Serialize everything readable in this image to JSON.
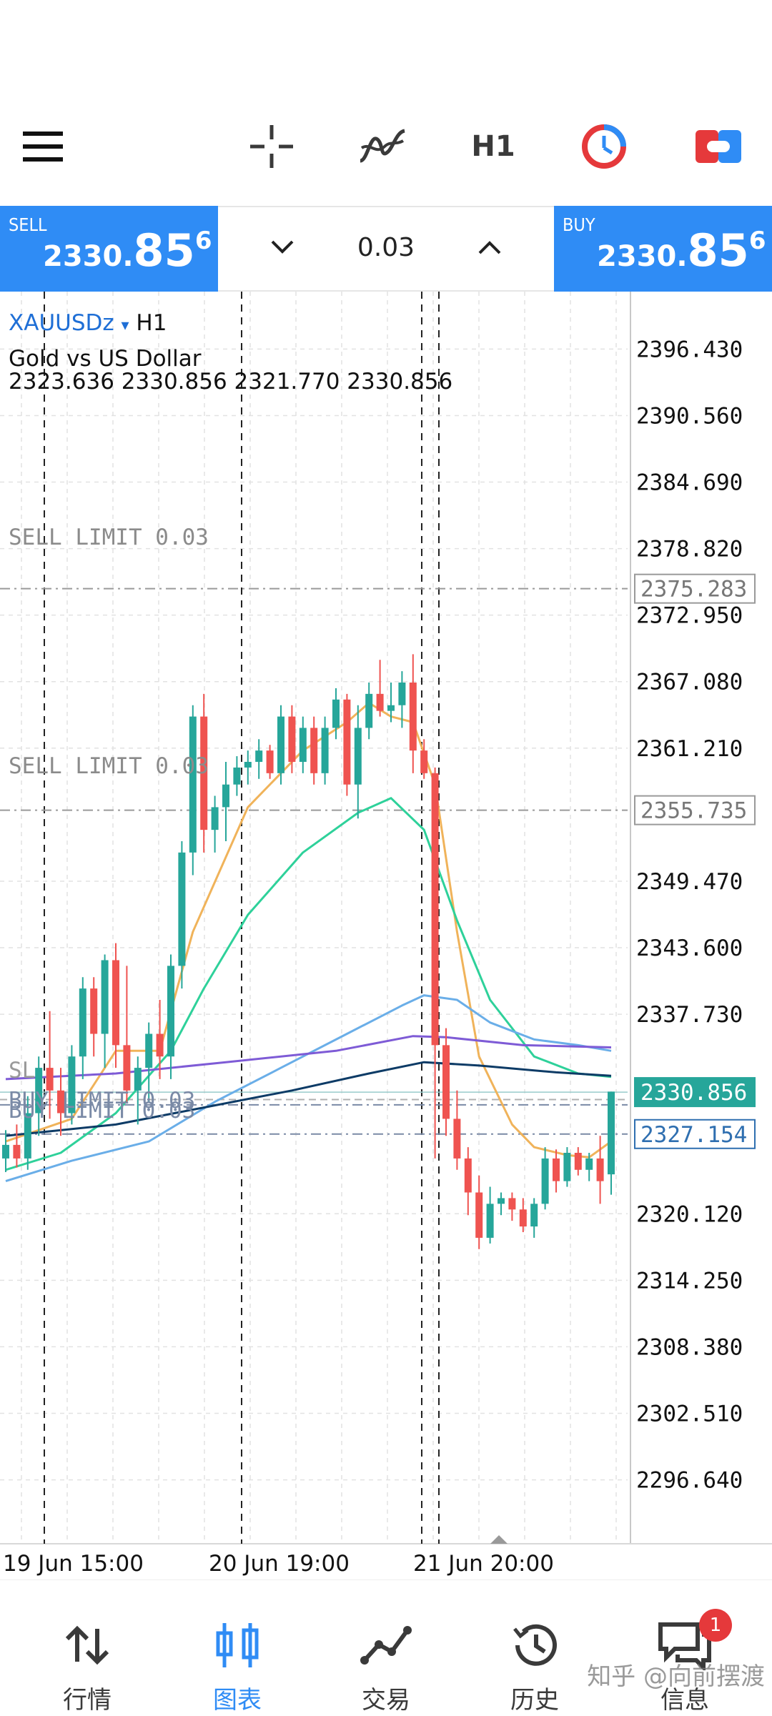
{
  "toolbar": {
    "menu_icon": "hamburger-menu-icon",
    "crosshair_icon": "crosshair-icon",
    "indicators_icon": "indicators-icon",
    "timeframe": "H1",
    "trade_icon": "clock-trade-icon",
    "toggle_icon": "toggle-icon"
  },
  "trade": {
    "sell": {
      "label": "SELL",
      "price_small": "2330.",
      "price_big": "85",
      "price_sup": "6"
    },
    "buy": {
      "label": "BUY",
      "price_small": "2330.",
      "price_big": "85",
      "price_sup": "6"
    },
    "volume": "0.03"
  },
  "chart_info": {
    "symbol": "XAUUSDz",
    "dropdown_glyph": "▾",
    "timeframe": "H1",
    "description": "Gold vs US Dollar",
    "ohlc": "2323.636 2330.856 2321.770 2330.856"
  },
  "orders": {
    "sell_limit_1": {
      "label": "SELL LIMIT 0.03",
      "price": "2375.283"
    },
    "sell_limit_2": {
      "label": "SELL LIMIT 0.03",
      "price": "2355.735"
    },
    "buy_limit_1": {
      "label": "BUY LIMIT 0.03"
    },
    "buy_limit_2": {
      "label": "BUY LIMIT 0.03",
      "price": "2327.154"
    },
    "sl": {
      "label": "SL"
    }
  },
  "colors": {
    "bull": "#26a69a",
    "bear": "#ef5350",
    "accent": "#2f8cf5",
    "ma_orange": "#f0b35a",
    "ma_green": "#2ed19a",
    "ma_lightblue": "#6aaee8",
    "ma_purple": "#7e5bd6",
    "ma_navy": "#0d3b66"
  },
  "chart_data": {
    "type": "candlestick",
    "symbol": "XAUUSDz",
    "timeframe": "H1",
    "ylim": [
      2291.0,
      2401.5
    ],
    "y_ticks": [
      "2396.430",
      "2390.560",
      "2384.690",
      "2378.820",
      "2372.950",
      "2367.080",
      "2361.210",
      "2349.470",
      "2343.600",
      "2337.730",
      "2320.120",
      "2314.250",
      "2308.380",
      "2302.510",
      "2296.640"
    ],
    "x_ticks": [
      "19 Jun 15:00",
      "20 Jun 19:00",
      "21 Jun 20:00"
    ],
    "current_price": "2330.856",
    "candles": [
      {
        "o": 2325.0,
        "h": 2327.5,
        "l": 2323.8,
        "c": 2326.2
      },
      {
        "o": 2326.2,
        "h": 2328.0,
        "l": 2324.2,
        "c": 2325.0
      },
      {
        "o": 2325.0,
        "h": 2330.5,
        "l": 2324.0,
        "c": 2329.0
      },
      {
        "o": 2329.0,
        "h": 2334.0,
        "l": 2327.0,
        "c": 2333.0
      },
      {
        "o": 2333.0,
        "h": 2338.0,
        "l": 2328.5,
        "c": 2331.0
      },
      {
        "o": 2331.0,
        "h": 2333.0,
        "l": 2327.0,
        "c": 2329.0
      },
      {
        "o": 2329.0,
        "h": 2335.0,
        "l": 2328.0,
        "c": 2334.0
      },
      {
        "o": 2334.0,
        "h": 2341.0,
        "l": 2332.0,
        "c": 2340.0
      },
      {
        "o": 2340.0,
        "h": 2341.0,
        "l": 2334.0,
        "c": 2336.0
      },
      {
        "o": 2336.0,
        "h": 2343.0,
        "l": 2333.0,
        "c": 2342.5
      },
      {
        "o": 2342.5,
        "h": 2344.0,
        "l": 2333.0,
        "c": 2335.0
      },
      {
        "o": 2335.0,
        "h": 2342.0,
        "l": 2330.0,
        "c": 2331.0
      },
      {
        "o": 2331.0,
        "h": 2334.0,
        "l": 2328.0,
        "c": 2333.0
      },
      {
        "o": 2333.0,
        "h": 2337.0,
        "l": 2330.0,
        "c": 2336.0
      },
      {
        "o": 2336.0,
        "h": 2339.0,
        "l": 2332.0,
        "c": 2334.0
      },
      {
        "o": 2334.0,
        "h": 2343.0,
        "l": 2332.0,
        "c": 2342.0
      },
      {
        "o": 2342.0,
        "h": 2353.0,
        "l": 2340.0,
        "c": 2352.0
      },
      {
        "o": 2352.0,
        "h": 2365.0,
        "l": 2350.0,
        "c": 2364.0
      },
      {
        "o": 2364.0,
        "h": 2366.0,
        "l": 2352.0,
        "c": 2354.0
      },
      {
        "o": 2354.0,
        "h": 2357.0,
        "l": 2352.0,
        "c": 2356.0
      },
      {
        "o": 2356.0,
        "h": 2360.0,
        "l": 2353.0,
        "c": 2358.0
      },
      {
        "o": 2358.0,
        "h": 2360.5,
        "l": 2357.0,
        "c": 2359.5
      },
      {
        "o": 2359.5,
        "h": 2361.0,
        "l": 2358.0,
        "c": 2360.0
      },
      {
        "o": 2360.0,
        "h": 2362.0,
        "l": 2358.5,
        "c": 2361.0
      },
      {
        "o": 2361.0,
        "h": 2361.5,
        "l": 2358.5,
        "c": 2359.0
      },
      {
        "o": 2359.0,
        "h": 2365.0,
        "l": 2358.0,
        "c": 2364.0
      },
      {
        "o": 2364.0,
        "h": 2365.0,
        "l": 2359.0,
        "c": 2360.0
      },
      {
        "o": 2360.0,
        "h": 2364.0,
        "l": 2359.0,
        "c": 2363.0
      },
      {
        "o": 2363.0,
        "h": 2364.0,
        "l": 2358.0,
        "c": 2359.0
      },
      {
        "o": 2359.0,
        "h": 2364.0,
        "l": 2358.0,
        "c": 2363.0
      },
      {
        "o": 2363.0,
        "h": 2366.5,
        "l": 2362.0,
        "c": 2365.5
      },
      {
        "o": 2365.5,
        "h": 2366.0,
        "l": 2357.0,
        "c": 2358.0
      },
      {
        "o": 2358.0,
        "h": 2365.0,
        "l": 2355.0,
        "c": 2363.0
      },
      {
        "o": 2363.0,
        "h": 2367.0,
        "l": 2362.0,
        "c": 2366.0
      },
      {
        "o": 2366.0,
        "h": 2369.0,
        "l": 2364.0,
        "c": 2364.5
      },
      {
        "o": 2364.5,
        "h": 2367.0,
        "l": 2363.5,
        "c": 2365.0
      },
      {
        "o": 2365.0,
        "h": 2368.0,
        "l": 2363.0,
        "c": 2367.0
      },
      {
        "o": 2367.0,
        "h": 2369.5,
        "l": 2359.0,
        "c": 2361.0
      },
      {
        "o": 2361.0,
        "h": 2362.0,
        "l": 2358.5,
        "c": 2359.0
      },
      {
        "o": 2359.0,
        "h": 2359.5,
        "l": 2325.0,
        "c": 2335.0
      },
      {
        "o": 2335.0,
        "h": 2336.5,
        "l": 2327.0,
        "c": 2328.5
      },
      {
        "o": 2328.5,
        "h": 2331.0,
        "l": 2324.0,
        "c": 2325.0
      },
      {
        "o": 2325.0,
        "h": 2326.0,
        "l": 2320.0,
        "c": 2322.0
      },
      {
        "o": 2322.0,
        "h": 2323.5,
        "l": 2317.0,
        "c": 2318.0
      },
      {
        "o": 2318.0,
        "h": 2322.5,
        "l": 2317.5,
        "c": 2321.0
      },
      {
        "o": 2321.0,
        "h": 2322.0,
        "l": 2320.0,
        "c": 2321.5
      },
      {
        "o": 2321.5,
        "h": 2322.0,
        "l": 2319.5,
        "c": 2320.5
      },
      {
        "o": 2320.5,
        "h": 2321.5,
        "l": 2318.5,
        "c": 2319.0
      },
      {
        "o": 2319.0,
        "h": 2321.5,
        "l": 2318.0,
        "c": 2321.0
      },
      {
        "o": 2321.0,
        "h": 2326.0,
        "l": 2320.5,
        "c": 2325.0
      },
      {
        "o": 2325.0,
        "h": 2325.8,
        "l": 2322.0,
        "c": 2323.0
      },
      {
        "o": 2323.0,
        "h": 2326.0,
        "l": 2322.5,
        "c": 2325.5
      },
      {
        "o": 2325.5,
        "h": 2326.0,
        "l": 2323.5,
        "c": 2324.0
      },
      {
        "o": 2324.0,
        "h": 2325.5,
        "l": 2323.0,
        "c": 2325.0
      },
      {
        "o": 2325.0,
        "h": 2327.0,
        "l": 2321.0,
        "c": 2323.0
      },
      {
        "o": 2323.6,
        "h": 2330.9,
        "l": 2321.8,
        "c": 2330.9
      }
    ],
    "moving_averages": [
      {
        "color": "#f0b35a",
        "points": [
          [
            0,
            2326.5
          ],
          [
            6,
            2328.5
          ],
          [
            10,
            2334.5
          ],
          [
            14,
            2334.5
          ],
          [
            17,
            2345.0
          ],
          [
            22,
            2356.0
          ],
          [
            27,
            2361.0
          ],
          [
            31,
            2363.5
          ],
          [
            33,
            2365.2
          ],
          [
            35,
            2364.0
          ],
          [
            37,
            2363.5
          ],
          [
            39,
            2358.0
          ],
          [
            41,
            2345.0
          ],
          [
            43,
            2334.0
          ],
          [
            46,
            2328.0
          ],
          [
            48,
            2326.0
          ],
          [
            51,
            2325.3
          ],
          [
            53,
            2325.1
          ],
          [
            55,
            2326.5
          ]
        ]
      },
      {
        "color": "#2ed19a",
        "points": [
          [
            0,
            2324.0
          ],
          [
            5,
            2325.5
          ],
          [
            10,
            2329.0
          ],
          [
            15,
            2334.5
          ],
          [
            18,
            2340.0
          ],
          [
            22,
            2346.5
          ],
          [
            27,
            2352.0
          ],
          [
            32,
            2355.5
          ],
          [
            35,
            2356.8
          ],
          [
            38,
            2354.0
          ],
          [
            41,
            2346.0
          ],
          [
            44,
            2339.0
          ],
          [
            48,
            2334.0
          ],
          [
            52,
            2332.5
          ],
          [
            55,
            2332.2
          ]
        ]
      },
      {
        "color": "#6aaee8",
        "points": [
          [
            0,
            2323.0
          ],
          [
            6,
            2324.8
          ],
          [
            13,
            2326.5
          ],
          [
            19,
            2330.0
          ],
          [
            25,
            2333.0
          ],
          [
            31,
            2336.0
          ],
          [
            36,
            2338.5
          ],
          [
            38,
            2339.4
          ],
          [
            41,
            2339.0
          ],
          [
            44,
            2337.0
          ],
          [
            48,
            2335.5
          ],
          [
            52,
            2335.0
          ],
          [
            55,
            2334.5
          ]
        ]
      },
      {
        "color": "#7e5bd6",
        "points": [
          [
            0,
            2332.0
          ],
          [
            10,
            2332.5
          ],
          [
            20,
            2333.5
          ],
          [
            30,
            2334.5
          ],
          [
            37,
            2335.8
          ],
          [
            40,
            2335.7
          ],
          [
            47,
            2335.0
          ],
          [
            55,
            2334.8
          ]
        ]
      },
      {
        "color": "#0d3b66",
        "points": [
          [
            0,
            2327.0
          ],
          [
            10,
            2328.0
          ],
          [
            18,
            2329.5
          ],
          [
            26,
            2331.0
          ],
          [
            33,
            2332.5
          ],
          [
            38,
            2333.5
          ],
          [
            43,
            2333.2
          ],
          [
            50,
            2332.6
          ],
          [
            55,
            2332.3
          ]
        ]
      }
    ],
    "order_lines": [
      {
        "label": "SELL LIMIT 0.03",
        "price": 2375.283
      },
      {
        "label": "SELL LIMIT 0.03",
        "price": 2355.735
      },
      {
        "label": "BUY LIMIT 0.03",
        "price": 2329.732
      },
      {
        "label": "BUY LIMIT 0.03",
        "price": 2327.154
      }
    ],
    "grid": true
  },
  "nav": {
    "items": [
      {
        "label": "行情",
        "icon": "quotes-arrows-icon"
      },
      {
        "label": "图表",
        "icon": "chart-candles-icon"
      },
      {
        "label": "交易",
        "icon": "trade-line-icon"
      },
      {
        "label": "历史",
        "icon": "history-clock-icon"
      },
      {
        "label": "信息",
        "icon": "messages-icon",
        "badge": "1"
      }
    ]
  },
  "watermark": "知乎 @向前摆渡"
}
